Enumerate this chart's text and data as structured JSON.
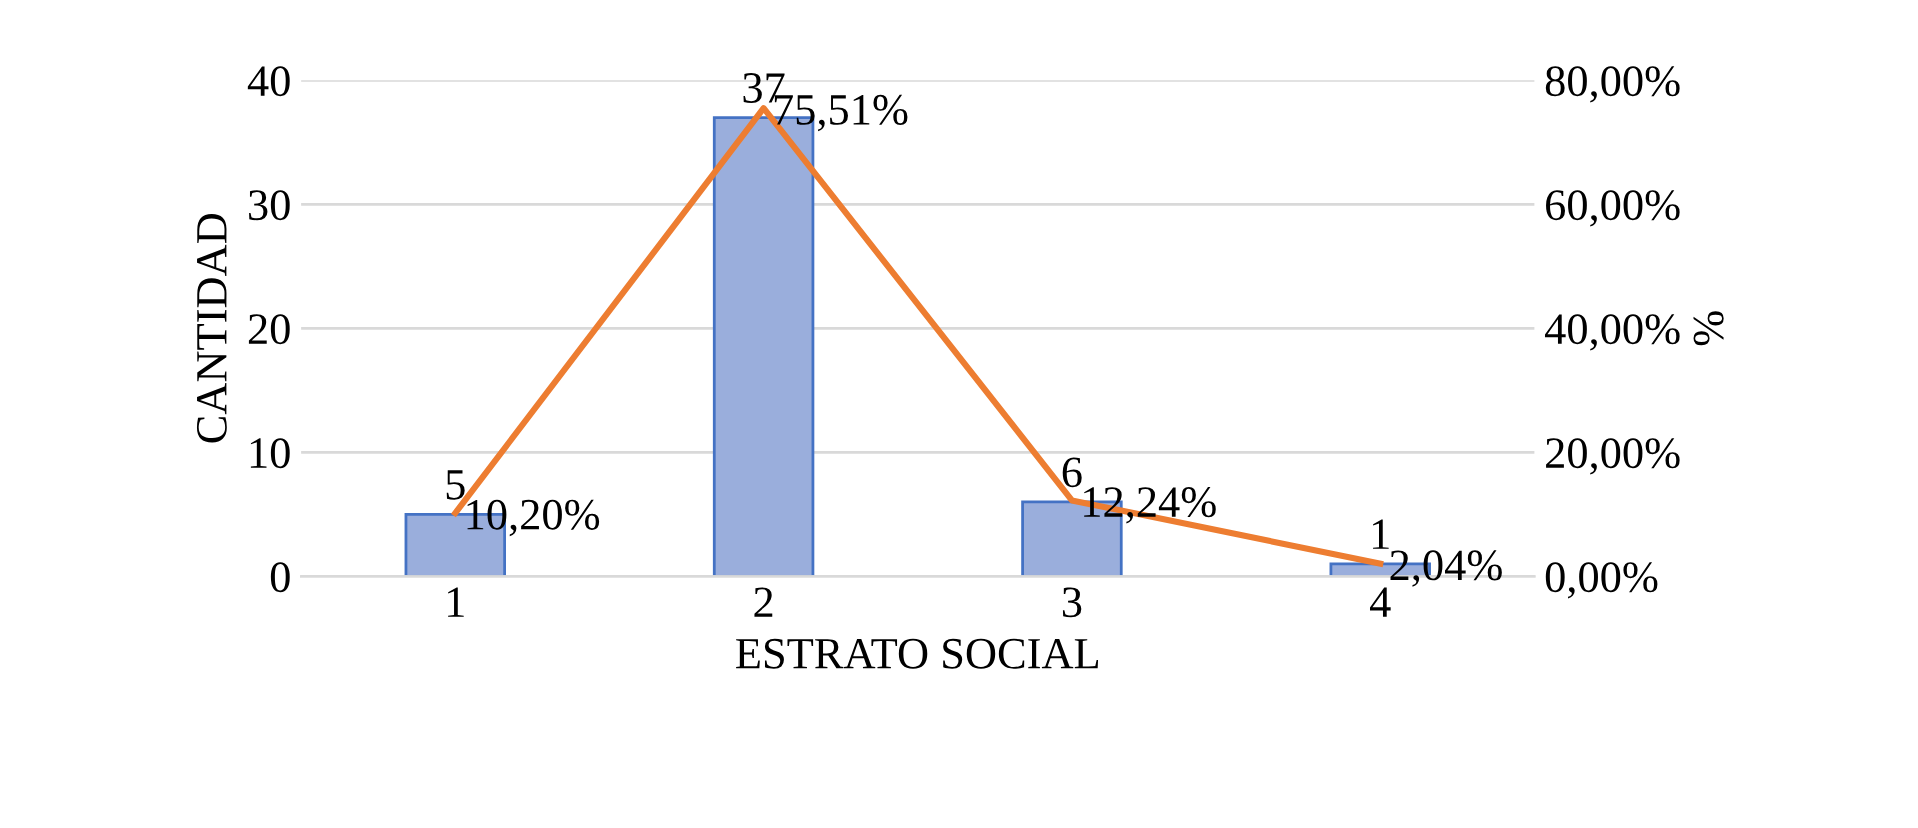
{
  "chart_data": {
    "type": "bar",
    "xlabel": "ESTRATO SOCIAL",
    "ylabel": "CANTIDAD",
    "y2label": "%",
    "categories": [
      "1",
      "2",
      "3",
      "4"
    ],
    "series": [
      {
        "color": "#9aaedc",
        "values": [
          5,
          37,
          6,
          1
        ],
        "value_labels": [
          "5",
          "37",
          "6",
          "1"
        ]
      },
      {
        "type": "line",
        "axis": "y2",
        "color": "#ed7d31",
        "values": [
          10.2,
          75.51,
          12.24,
          2.04
        ],
        "value_labels": [
          "10,20%",
          "75,51%",
          "12,24%",
          "2,04%"
        ]
      }
    ],
    "ylim": [
      0,
      40
    ],
    "yticks": [
      0,
      10,
      20,
      30,
      40
    ],
    "y2lim": [
      0,
      80
    ],
    "y2ticks": [
      {
        "value": 0,
        "label": "0,00%"
      },
      {
        "value": 20,
        "label": "20,00%"
      },
      {
        "value": 40,
        "label": "40,00%"
      },
      {
        "value": 60,
        "label": "60,00%"
      },
      {
        "value": 80,
        "label": "80,00%"
      }
    ],
    "grid": "y",
    "marker": "none",
    "line_style": "solid"
  }
}
